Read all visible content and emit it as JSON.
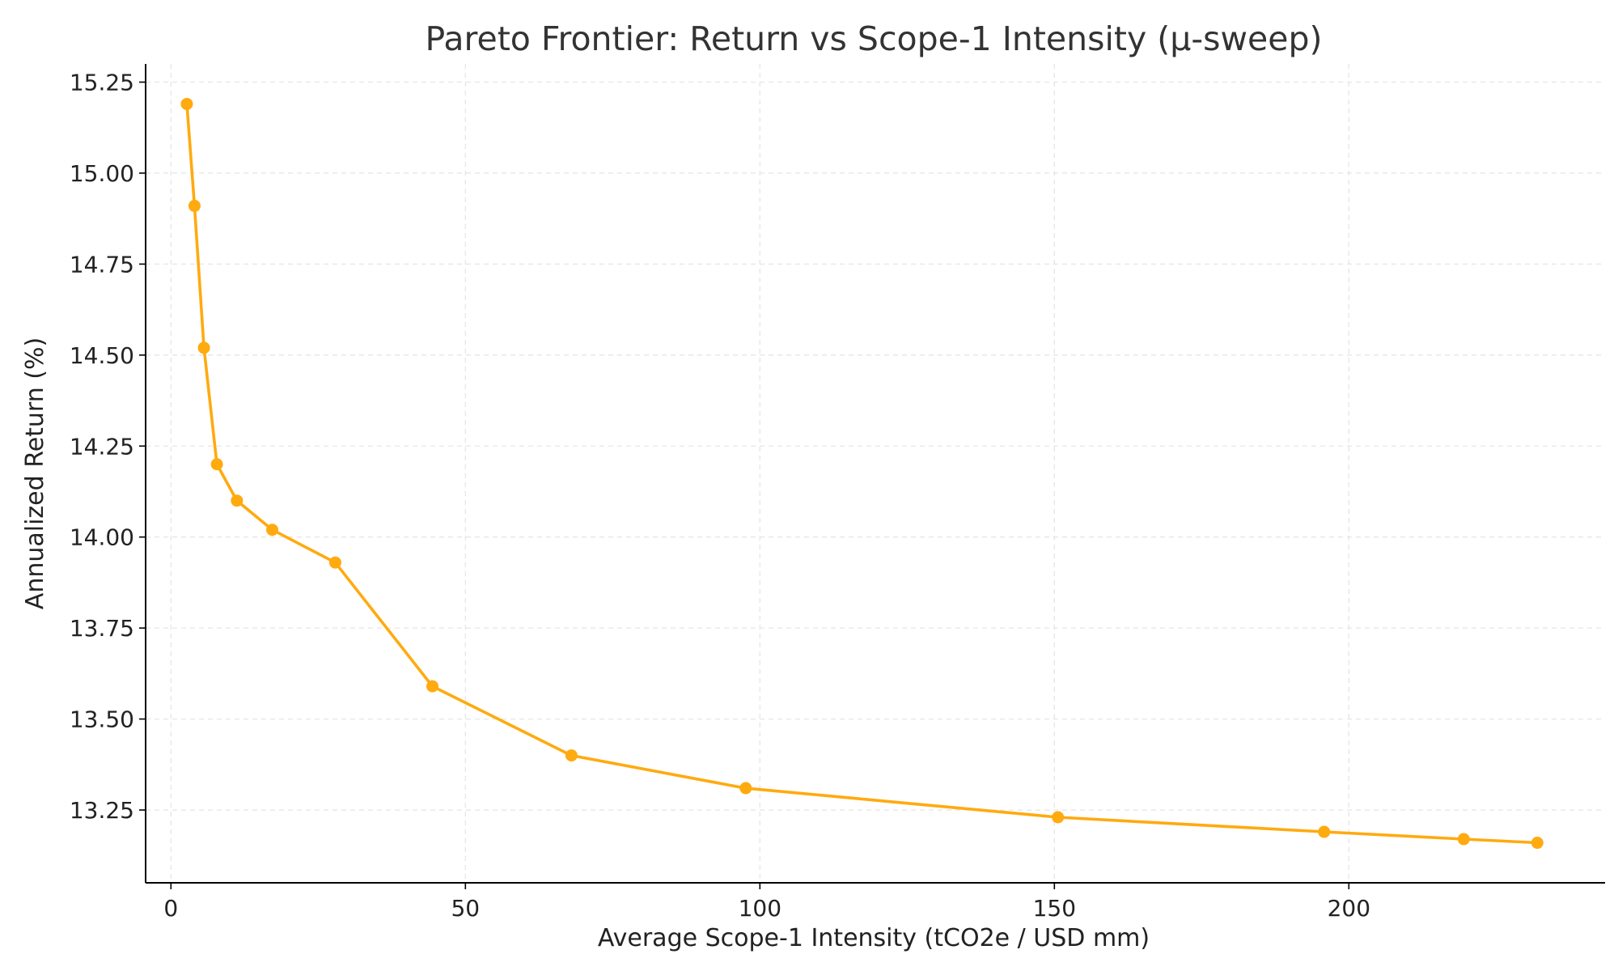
{
  "chart_data": {
    "type": "line",
    "title": "Pareto Frontier: Return vs Scope-1 Intensity (μ-sweep)",
    "xlabel": "Average Scope-1 Intensity (tCO2e / USD mm)",
    "ylabel": "Annualized Return (%)",
    "xlim": [
      -4.3,
      243.5
    ],
    "ylim": [
      13.05,
      15.3
    ],
    "xticks": [
      0,
      50,
      100,
      150,
      200
    ],
    "xtick_labels": [
      "0",
      "50",
      "100",
      "150",
      "200"
    ],
    "yticks": [
      13.25,
      13.5,
      13.75,
      14.0,
      14.25,
      14.5,
      14.75,
      15.0,
      15.25
    ],
    "ytick_labels": [
      "13.25",
      "13.50",
      "13.75",
      "14.00",
      "14.25",
      "14.50",
      "14.75",
      "15.00",
      "15.25"
    ],
    "grid": true,
    "series": [
      {
        "color": "#FFAA0F",
        "marker": "circle",
        "x": [
          2.7,
          4.0,
          5.6,
          7.8,
          11.2,
          17.2,
          27.9,
          44.4,
          68.0,
          97.6,
          150.6,
          195.8,
          219.5,
          232.0
        ],
        "y": [
          15.19,
          14.91,
          14.52,
          14.2,
          14.1,
          14.02,
          13.93,
          13.59,
          13.4,
          13.31,
          13.23,
          13.19,
          13.17,
          13.16
        ]
      }
    ]
  }
}
